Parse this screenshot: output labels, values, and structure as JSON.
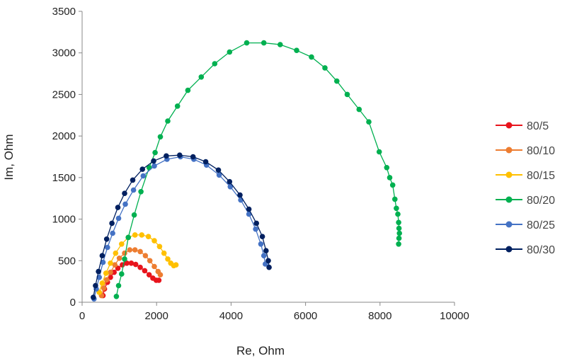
{
  "chart_data": {
    "type": "scatter",
    "title": "",
    "xlabel": "Re, Ohm",
    "ylabel": "Im, Ohm",
    "xlim": [
      0,
      10000
    ],
    "ylim": [
      0,
      3500
    ],
    "xticks": [
      "0",
      "2000",
      "4000",
      "6000",
      "8000",
      "10000"
    ],
    "yticks": [
      "0",
      "500",
      "1000",
      "1500",
      "2000",
      "2500",
      "3000",
      "3500"
    ],
    "grid": false,
    "legend_position": "right",
    "series": [
      {
        "name": "80/5",
        "color": "#e8141c",
        "points": [
          [
            560,
            80
          ],
          [
            600,
            160
          ],
          [
            680,
            240
          ],
          [
            760,
            300
          ],
          [
            860,
            360
          ],
          [
            960,
            410
          ],
          [
            1080,
            450
          ],
          [
            1200,
            470
          ],
          [
            1320,
            470
          ],
          [
            1440,
            455
          ],
          [
            1560,
            420
          ],
          [
            1680,
            380
          ],
          [
            1800,
            330
          ],
          [
            1900,
            290
          ],
          [
            1990,
            265
          ],
          [
            2060,
            265
          ]
        ]
      },
      {
        "name": "80/10",
        "color": "#ed7d31",
        "points": [
          [
            520,
            80
          ],
          [
            580,
            170
          ],
          [
            660,
            270
          ],
          [
            760,
            360
          ],
          [
            880,
            450
          ],
          [
            1000,
            530
          ],
          [
            1140,
            590
          ],
          [
            1280,
            630
          ],
          [
            1420,
            630
          ],
          [
            1560,
            610
          ],
          [
            1700,
            560
          ],
          [
            1820,
            500
          ],
          [
            1940,
            430
          ],
          [
            2040,
            370
          ],
          [
            2100,
            330
          ]
        ]
      },
      {
        "name": "80/15",
        "color": "#ffc000",
        "points": [
          [
            460,
            120
          ],
          [
            540,
            230
          ],
          [
            640,
            350
          ],
          [
            760,
            470
          ],
          [
            900,
            590
          ],
          [
            1060,
            700
          ],
          [
            1240,
            780
          ],
          [
            1420,
            810
          ],
          [
            1600,
            810
          ],
          [
            1780,
            790
          ],
          [
            1940,
            740
          ],
          [
            2080,
            670
          ],
          [
            2200,
            590
          ],
          [
            2300,
            520
          ],
          [
            2380,
            470
          ],
          [
            2460,
            440
          ],
          [
            2520,
            450
          ]
        ]
      },
      {
        "name": "80/20",
        "color": "#00b050",
        "points": [
          [
            920,
            70
          ],
          [
            980,
            200
          ],
          [
            1060,
            340
          ],
          [
            1140,
            520
          ],
          [
            1240,
            780
          ],
          [
            1400,
            1050
          ],
          [
            1580,
            1330
          ],
          [
            1800,
            1620
          ],
          [
            1960,
            1800
          ],
          [
            2100,
            1990
          ],
          [
            2300,
            2180
          ],
          [
            2560,
            2360
          ],
          [
            2840,
            2550
          ],
          [
            3200,
            2710
          ],
          [
            3560,
            2870
          ],
          [
            3960,
            3010
          ],
          [
            4420,
            3120
          ],
          [
            4880,
            3120
          ],
          [
            5320,
            3100
          ],
          [
            5760,
            3030
          ],
          [
            6160,
            2950
          ],
          [
            6520,
            2820
          ],
          [
            6840,
            2660
          ],
          [
            7120,
            2500
          ],
          [
            7440,
            2320
          ],
          [
            7700,
            2170
          ],
          [
            7980,
            1810
          ],
          [
            8180,
            1620
          ],
          [
            8260,
            1500
          ],
          [
            8340,
            1410
          ],
          [
            8400,
            1240
          ],
          [
            8440,
            1130
          ],
          [
            8480,
            1060
          ],
          [
            8500,
            960
          ],
          [
            8510,
            890
          ],
          [
            8520,
            830
          ],
          [
            8510,
            770
          ],
          [
            8500,
            700
          ]
        ]
      },
      {
        "name": "80/25",
        "color": "#4472c4",
        "points": [
          [
            320,
            40
          ],
          [
            380,
            160
          ],
          [
            460,
            300
          ],
          [
            560,
            480
          ],
          [
            680,
            660
          ],
          [
            820,
            830
          ],
          [
            980,
            1010
          ],
          [
            1160,
            1180
          ],
          [
            1380,
            1350
          ],
          [
            1640,
            1520
          ],
          [
            1940,
            1640
          ],
          [
            2280,
            1720
          ],
          [
            2640,
            1750
          ],
          [
            3000,
            1720
          ],
          [
            3340,
            1650
          ],
          [
            3680,
            1530
          ],
          [
            3980,
            1390
          ],
          [
            4260,
            1230
          ],
          [
            4480,
            1060
          ],
          [
            4660,
            880
          ],
          [
            4800,
            700
          ],
          [
            4880,
            560
          ],
          [
            4920,
            460
          ]
        ]
      },
      {
        "name": "80/30",
        "color": "#002060",
        "points": [
          [
            300,
            60
          ],
          [
            360,
            200
          ],
          [
            440,
            370
          ],
          [
            540,
            560
          ],
          [
            660,
            760
          ],
          [
            800,
            950
          ],
          [
            960,
            1140
          ],
          [
            1140,
            1310
          ],
          [
            1360,
            1470
          ],
          [
            1620,
            1600
          ],
          [
            1920,
            1700
          ],
          [
            2260,
            1760
          ],
          [
            2620,
            1770
          ],
          [
            2980,
            1750
          ],
          [
            3320,
            1690
          ],
          [
            3660,
            1590
          ],
          [
            3960,
            1450
          ],
          [
            4240,
            1290
          ],
          [
            4480,
            1120
          ],
          [
            4680,
            950
          ],
          [
            4840,
            790
          ],
          [
            4940,
            620
          ],
          [
            5000,
            500
          ],
          [
            5020,
            420
          ]
        ]
      }
    ]
  }
}
